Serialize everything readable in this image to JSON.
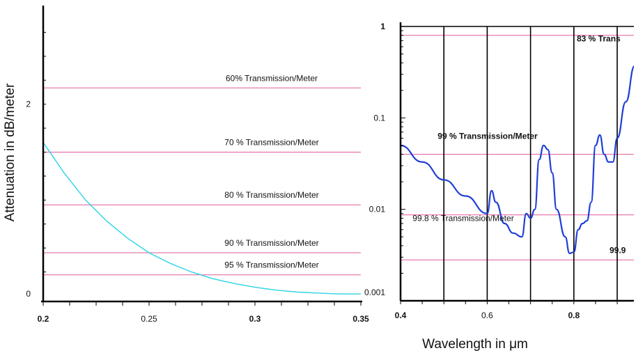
{
  "figure": {
    "xlabel": "Wavelength in μm",
    "ylabel": "Attenuation in dB/meter"
  },
  "chart_data": [
    {
      "type": "line",
      "panel": "left",
      "xlabel": "",
      "ylabel": "Attenuation in dB/meter",
      "xlim": [
        0.2,
        0.35
      ],
      "ylim": [
        0,
        3
      ],
      "x_ticks": [
        0.2,
        0.25,
        0.3,
        0.35
      ],
      "x_tick_labels": [
        "0.2",
        "0.25",
        "0.3",
        "0.35"
      ],
      "y_ticks": [
        0,
        2
      ],
      "y_tick_labels": [
        "0",
        "2"
      ],
      "grid": false,
      "colors": {
        "curve": "#2ed3e6",
        "reference": "#e05a9a"
      },
      "series": [
        {
          "x": [
            0.2,
            0.21,
            0.22,
            0.23,
            0.24,
            0.25,
            0.26,
            0.27,
            0.28,
            0.29,
            0.3,
            0.31,
            0.32,
            0.33,
            0.34,
            0.35
          ],
          "values": [
            1.6,
            1.28,
            1.0,
            0.78,
            0.6,
            0.45,
            0.34,
            0.25,
            0.18,
            0.13,
            0.09,
            0.06,
            0.04,
            0.03,
            0.02,
            0.02
          ]
        }
      ],
      "reference_lines": [
        {
          "y": 2.17,
          "label": "60% Transmission/Meter"
        },
        {
          "y": 1.5,
          "label": "70 % Transmission/Meter"
        },
        {
          "y": 0.95,
          "label": "80 % Transmission/Meter"
        },
        {
          "y": 0.45,
          "label": "90 % Transmission/Meter"
        },
        {
          "y": 0.22,
          "label": "95 % Transmission/Meter"
        }
      ]
    },
    {
      "type": "line",
      "panel": "right",
      "scale": "log",
      "xlabel": "Wavelength in μm",
      "ylabel": "",
      "xlim": [
        0.4,
        0.9
      ],
      "ylim": [
        0.001,
        1
      ],
      "x_ticks": [
        0.4,
        0.6,
        0.8
      ],
      "x_tick_labels": [
        "0.4",
        "0.6",
        "0.8"
      ],
      "y_ticks": [
        1,
        0.1,
        0.01,
        0.001
      ],
      "y_tick_labels": [
        "1",
        "0.1",
        "0.01",
        "0.001"
      ],
      "vertical_gridlines_x": [
        0.5,
        0.6,
        0.7,
        0.8,
        0.9
      ],
      "grid": true,
      "colors": {
        "curve": "#1f3fd6",
        "reference": "#e05a9a",
        "gridline": "#000000"
      },
      "series": [
        {
          "x": [
            0.4,
            0.45,
            0.5,
            0.55,
            0.6,
            0.61,
            0.62,
            0.64,
            0.66,
            0.68,
            0.69,
            0.7,
            0.71,
            0.72,
            0.73,
            0.74,
            0.75,
            0.76,
            0.78,
            0.79,
            0.8,
            0.81,
            0.82,
            0.83,
            0.84,
            0.85,
            0.86,
            0.87,
            0.88,
            0.89,
            0.9,
            0.92,
            0.94
          ],
          "values": [
            0.05,
            0.033,
            0.021,
            0.014,
            0.009,
            0.016,
            0.012,
            0.007,
            0.0055,
            0.005,
            0.009,
            0.008,
            0.01,
            0.035,
            0.05,
            0.045,
            0.025,
            0.01,
            0.005,
            0.0033,
            0.0034,
            0.006,
            0.007,
            0.0075,
            0.012,
            0.05,
            0.065,
            0.04,
            0.033,
            0.033,
            0.06,
            0.15,
            0.37
          ]
        }
      ],
      "reference_lines": [
        {
          "y": 0.8,
          "label": "83 % Trans"
        },
        {
          "y": 0.04,
          "label": "99 % Transmission/Meter"
        },
        {
          "y": 0.0087,
          "label": "99.8 % Transmission/Meter"
        },
        {
          "y": 0.0028,
          "label": "99.9"
        }
      ]
    }
  ]
}
